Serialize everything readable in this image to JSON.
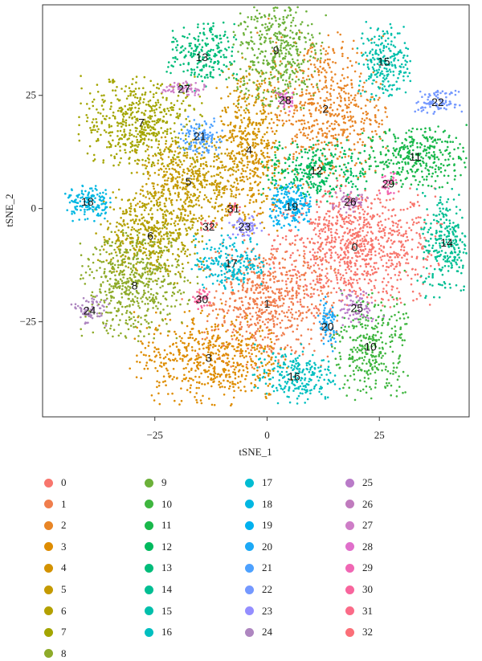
{
  "chart_data": {
    "type": "scatter",
    "xlabel": "tSNE_1",
    "ylabel": "tSNE_2",
    "xlim": [
      -50,
      45
    ],
    "ylim": [
      -46,
      45
    ],
    "xticks": [
      -25,
      0,
      25
    ],
    "yticks": [
      -25,
      0,
      25
    ],
    "grid": false,
    "legend_position": "bottom",
    "clusters": [
      {
        "label": "0",
        "color": "#F8766D",
        "x": 19.5,
        "y": -8.5,
        "sx": 11.0,
        "sy": 8.0,
        "n": 900
      },
      {
        "label": "1",
        "color": "#F07E4D",
        "x": 0.0,
        "y": -21.0,
        "sx": 9.0,
        "sy": 8.0,
        "n": 650
      },
      {
        "label": "2",
        "color": "#E88526",
        "x": 13.0,
        "y": 22.0,
        "sx": 8.0,
        "sy": 10.0,
        "n": 600
      },
      {
        "label": "3",
        "color": "#DE8C00",
        "x": -13.0,
        "y": -33.0,
        "sx": 10.0,
        "sy": 6.0,
        "n": 550
      },
      {
        "label": "4",
        "color": "#D39200",
        "x": -4.0,
        "y": 13.0,
        "sx": 4.5,
        "sy": 11.0,
        "n": 500
      },
      {
        "label": "5",
        "color": "#C49A00",
        "x": -17.5,
        "y": 6.0,
        "sx": 7.0,
        "sy": 6.0,
        "n": 480
      },
      {
        "label": "6",
        "color": "#B3A000",
        "x": -26.0,
        "y": -6.0,
        "sx": 7.0,
        "sy": 6.0,
        "n": 480
      },
      {
        "label": "7",
        "color": "#A3A500",
        "x": -28.0,
        "y": 19.0,
        "sx": 8.0,
        "sy": 6.0,
        "n": 520
      },
      {
        "label": "8",
        "color": "#8EAB2A",
        "x": -29.5,
        "y": -17.0,
        "sx": 7.0,
        "sy": 7.0,
        "n": 520
      },
      {
        "label": "9",
        "color": "#6CB13A",
        "x": 2.0,
        "y": 35.0,
        "sx": 6.0,
        "sy": 8.0,
        "n": 430
      },
      {
        "label": "10",
        "color": "#3FB63F",
        "x": 23.0,
        "y": -30.5,
        "sx": 5.0,
        "sy": 7.0,
        "n": 330
      },
      {
        "label": "11",
        "color": "#19B84B",
        "x": 33.0,
        "y": 11.5,
        "sx": 7.0,
        "sy": 4.0,
        "n": 330
      },
      {
        "label": "12",
        "color": "#00BA5E",
        "x": 11.0,
        "y": 8.5,
        "sx": 7.0,
        "sy": 4.0,
        "n": 300
      },
      {
        "label": "13",
        "color": "#00BC7A",
        "x": -14.5,
        "y": 33.5,
        "sx": 4.5,
        "sy": 4.5,
        "n": 230
      },
      {
        "label": "14",
        "color": "#00BE93",
        "x": 40.0,
        "y": -7.5,
        "sx": 3.5,
        "sy": 7.0,
        "n": 260
      },
      {
        "label": "15",
        "color": "#00BFAB",
        "x": 26.0,
        "y": 32.5,
        "sx": 3.5,
        "sy": 5.0,
        "n": 230
      },
      {
        "label": "16",
        "color": "#00BFC0",
        "x": 6.0,
        "y": -37.0,
        "sx": 5.5,
        "sy": 3.5,
        "n": 230
      },
      {
        "label": "17",
        "color": "#00BCD2",
        "x": -8.0,
        "y": -12.0,
        "sx": 5.0,
        "sy": 3.5,
        "n": 210
      },
      {
        "label": "18",
        "color": "#00B7E2",
        "x": -40.0,
        "y": 1.5,
        "sx": 3.0,
        "sy": 2.5,
        "n": 140
      },
      {
        "label": "19",
        "color": "#00B1EF",
        "x": 5.5,
        "y": 0.5,
        "sx": 3.0,
        "sy": 3.0,
        "n": 190
      },
      {
        "label": "20",
        "color": "#1CA9F6",
        "x": 13.5,
        "y": -26.0,
        "sx": 1.5,
        "sy": 3.5,
        "n": 70
      },
      {
        "label": "21",
        "color": "#4DA1FF",
        "x": -15.0,
        "y": 16.0,
        "sx": 3.0,
        "sy": 2.5,
        "n": 120
      },
      {
        "label": "22",
        "color": "#7498FF",
        "x": 38.0,
        "y": 23.5,
        "sx": 3.0,
        "sy": 1.5,
        "n": 90
      },
      {
        "label": "23",
        "color": "#948EFF",
        "x": -5.0,
        "y": -4.0,
        "sx": 2.5,
        "sy": 1.5,
        "n": 60
      },
      {
        "label": "24",
        "color": "#AE86C0",
        "x": -39.5,
        "y": -22.5,
        "sx": 2.5,
        "sy": 2.0,
        "n": 70
      },
      {
        "label": "25",
        "color": "#B97BC8",
        "x": 20.0,
        "y": -22.0,
        "sx": 2.5,
        "sy": 2.5,
        "n": 70
      },
      {
        "label": "26",
        "color": "#C07BBE",
        "x": 18.5,
        "y": 1.5,
        "sx": 2.5,
        "sy": 1.5,
        "n": 60
      },
      {
        "label": "27",
        "color": "#CE7DC7",
        "x": -18.5,
        "y": 26.5,
        "sx": 3.0,
        "sy": 1.0,
        "n": 60
      },
      {
        "label": "28",
        "color": "#E06FCB",
        "x": 4.0,
        "y": 24.0,
        "sx": 1.2,
        "sy": 1.5,
        "n": 40
      },
      {
        "label": "29",
        "color": "#F067B4",
        "x": 27.0,
        "y": 5.5,
        "sx": 1.2,
        "sy": 1.5,
        "n": 35
      },
      {
        "label": "30",
        "color": "#F8659D",
        "x": -14.5,
        "y": -20.0,
        "sx": 1.2,
        "sy": 1.5,
        "n": 35
      },
      {
        "label": "31",
        "color": "#FB6B88",
        "x": -7.5,
        "y": 0.0,
        "sx": 1.0,
        "sy": 0.8,
        "n": 15
      },
      {
        "label": "32",
        "color": "#FB6F78",
        "x": -13.0,
        "y": -4.0,
        "sx": 1.0,
        "sy": 0.8,
        "n": 15
      }
    ]
  }
}
